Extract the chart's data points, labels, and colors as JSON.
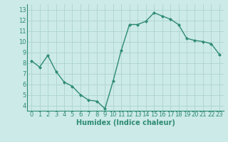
{
  "x": [
    0,
    1,
    2,
    3,
    4,
    5,
    6,
    7,
    8,
    9,
    10,
    11,
    12,
    13,
    14,
    15,
    16,
    17,
    18,
    19,
    20,
    21,
    22,
    23
  ],
  "y": [
    8.2,
    7.6,
    8.7,
    7.2,
    6.2,
    5.8,
    5.0,
    4.5,
    4.4,
    3.7,
    6.3,
    9.2,
    11.6,
    11.6,
    11.9,
    12.7,
    12.4,
    12.1,
    11.6,
    10.3,
    10.1,
    10.0,
    9.8,
    8.8
  ],
  "line_color": "#2e8b74",
  "marker": "D",
  "marker_size": 2.0,
  "bg_color": "#cceae7",
  "grid_color": "#aed4d0",
  "xlabel": "Humidex (Indice chaleur)",
  "ylim": [
    3.5,
    13.5
  ],
  "xlim": [
    -0.5,
    23.5
  ],
  "yticks": [
    4,
    5,
    6,
    7,
    8,
    9,
    10,
    11,
    12,
    13
  ],
  "xtick_labels": [
    "0",
    "1",
    "2",
    "3",
    "4",
    "5",
    "6",
    "7",
    "8",
    "9",
    "10",
    "11",
    "12",
    "13",
    "14",
    "15",
    "16",
    "17",
    "18",
    "19",
    "20",
    "21",
    "22",
    "23"
  ],
  "line_width": 1.0,
  "tick_fontsize": 6.0,
  "xlabel_fontsize": 7.0,
  "spine_color": "#2e8b74",
  "label_color": "#2e8b74"
}
